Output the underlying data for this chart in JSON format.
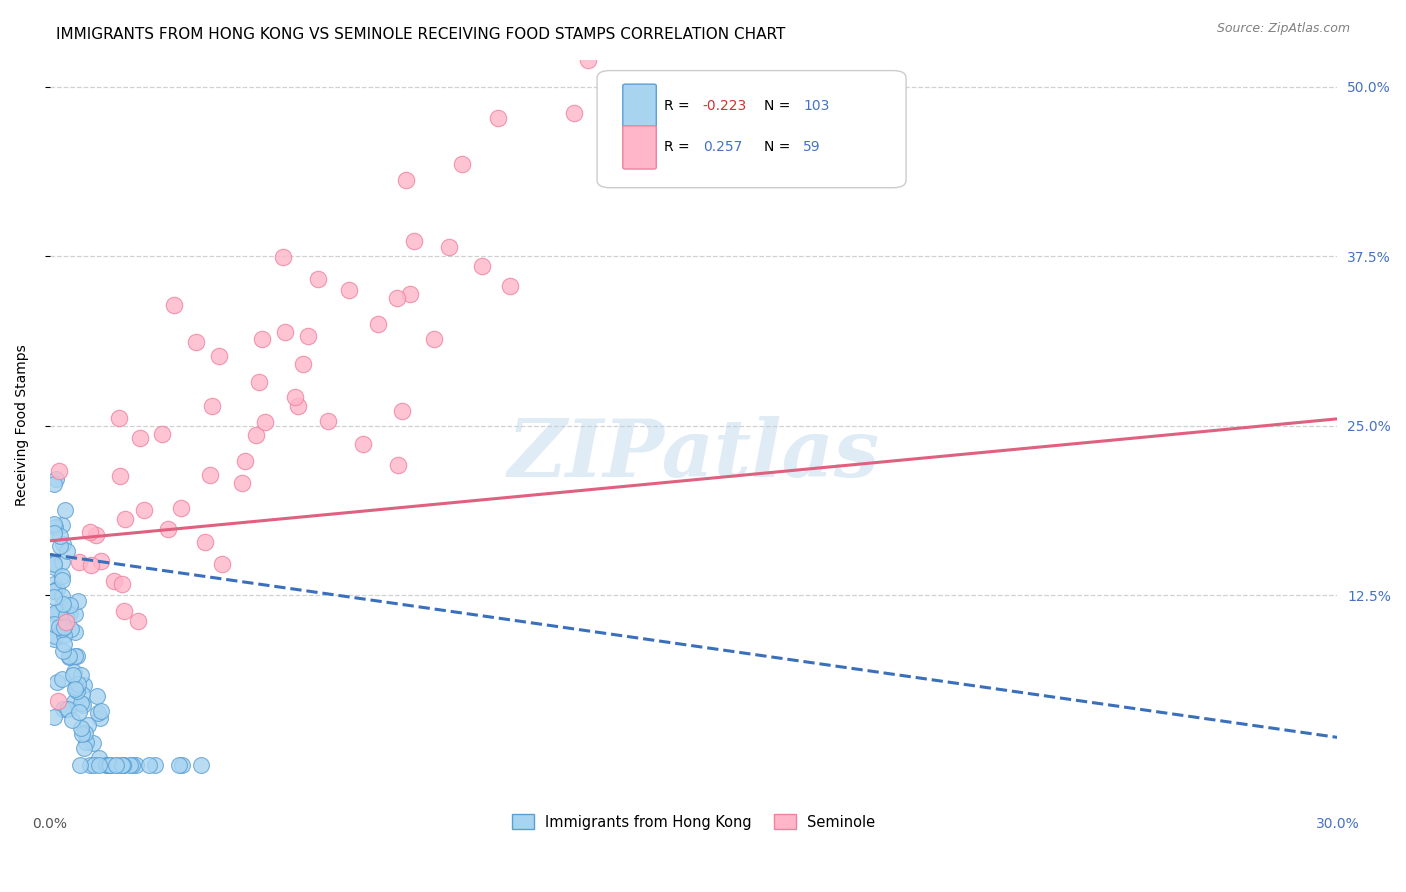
{
  "title": "IMMIGRANTS FROM HONG KONG VS SEMINOLE RECEIVING FOOD STAMPS CORRELATION CHART",
  "source": "Source: ZipAtlas.com",
  "ylabel": "Receiving Food Stamps",
  "ytick_labels": [
    "50.0%",
    "37.5%",
    "25.0%",
    "12.5%"
  ],
  "legend_label1": "Immigrants from Hong Kong",
  "legend_label2": "Seminole",
  "R1": -0.223,
  "N1": 103,
  "R2": 0.257,
  "N2": 59,
  "color_hk": "#a8d4f0",
  "color_hk_dark": "#5a9fd4",
  "color_sem": "#ffb6c8",
  "color_sem_dark": "#f080a0",
  "color_blue": "#4472c4",
  "watermark": "ZIPatlas",
  "xlim": [
    0.0,
    0.3
  ],
  "ylim": [
    -0.02,
    0.52
  ],
  "hk_line_x": [
    0.0,
    0.3
  ],
  "hk_line_y": [
    0.155,
    0.02
  ],
  "sem_line_x": [
    0.0,
    0.3
  ],
  "sem_line_y": [
    0.165,
    0.255
  ],
  "grid_color": "#cccccc",
  "title_fontsize": 11,
  "source_fontsize": 9,
  "axis_fontsize": 10,
  "tick_fontsize": 10
}
